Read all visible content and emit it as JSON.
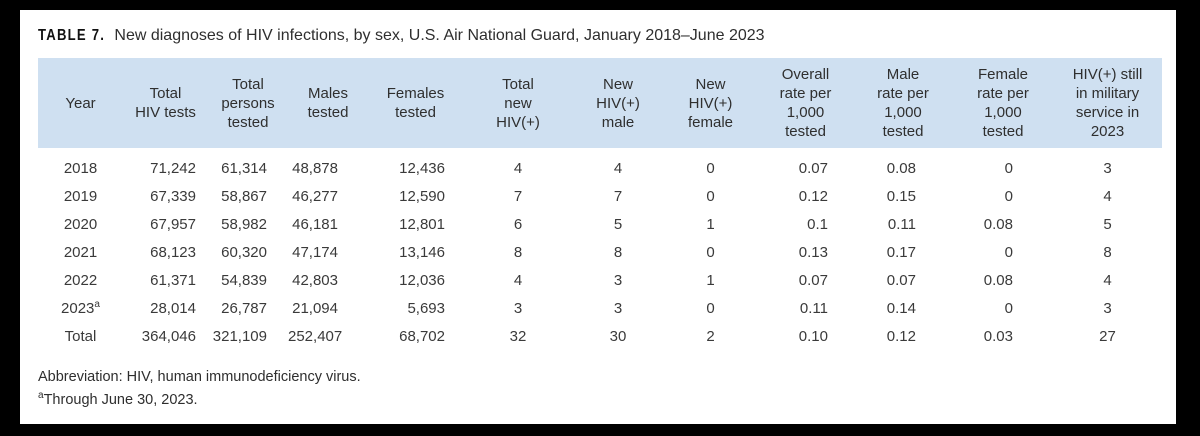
{
  "title": {
    "prefix": "TABLE 7.",
    "text": "New diagnoses of HIV infections, by sex, U.S. Air National Guard, January 2018–June 2023"
  },
  "table": {
    "header_bg": "#cfe0f1",
    "columns": [
      "Year",
      "Total\nHIV tests",
      "Total\npersons\ntested",
      "Males\ntested",
      "Females\ntested",
      "Total\nnew\nHIV(+)",
      "New\nHIV(+)\nmale",
      "New\nHIV(+)\nfemale",
      "Overall\nrate per\n1,000\ntested",
      "Male\nrate per\n1,000\ntested",
      "Female\nrate per\n1,000\ntested",
      "HIV(+) still\nin military\nservice in\n2023"
    ],
    "rows": [
      {
        "year": "2018",
        "year_sup": "",
        "cells": [
          "71,242",
          "61,314",
          "48,878",
          "12,436",
          "4",
          "4",
          "0",
          "0.07",
          "0.08",
          "0",
          "3"
        ]
      },
      {
        "year": "2019",
        "year_sup": "",
        "cells": [
          "67,339",
          "58,867",
          "46,277",
          "12,590",
          "7",
          "7",
          "0",
          "0.12",
          "0.15",
          "0",
          "4"
        ]
      },
      {
        "year": "2020",
        "year_sup": "",
        "cells": [
          "67,957",
          "58,982",
          "46,181",
          "12,801",
          "6",
          "5",
          "1",
          "0.1",
          "0.11",
          "0.08",
          "5"
        ]
      },
      {
        "year": "2021",
        "year_sup": "",
        "cells": [
          "68,123",
          "60,320",
          "47,174",
          "13,146",
          "8",
          "8",
          "0",
          "0.13",
          "0.17",
          "0",
          "8"
        ]
      },
      {
        "year": "2022",
        "year_sup": "",
        "cells": [
          "61,371",
          "54,839",
          "42,803",
          "12,036",
          "4",
          "3",
          "1",
          "0.07",
          "0.07",
          "0.08",
          "4"
        ]
      },
      {
        "year": "2023",
        "year_sup": "a",
        "cells": [
          "28,014",
          "26,787",
          "21,094",
          "5,693",
          "3",
          "3",
          "0",
          "0.11",
          "0.14",
          "0",
          "3"
        ]
      },
      {
        "year": "Total",
        "year_sup": "",
        "cells": [
          "364,046",
          "321,109",
          "252,407",
          "68,702",
          "32",
          "30",
          "2",
          "0.10",
          "0.12",
          "0.03",
          "27"
        ]
      }
    ]
  },
  "footnotes": {
    "abbreviation": "Abbreviation: HIV, human immunodeficiency virus.",
    "note_sup": "a",
    "note_text": "Through June 30, 2023."
  }
}
